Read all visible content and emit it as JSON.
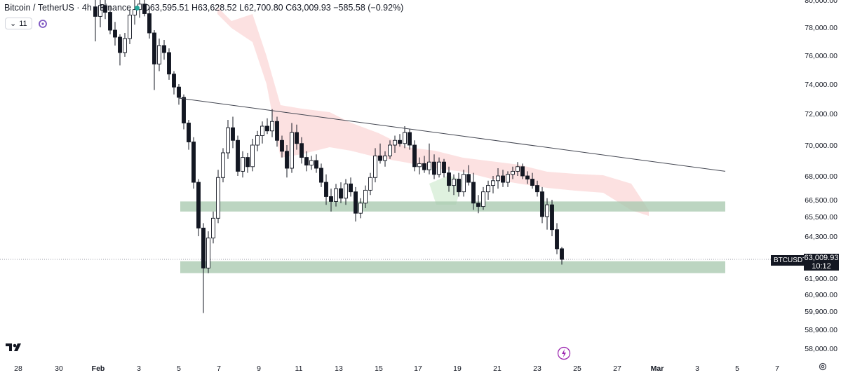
{
  "header": {
    "symbol_title": "Bitcoin / TetherUS · 4h · Binance",
    "open": "O63,595.51",
    "high": "H63,628.52",
    "low": "L62,700.80",
    "close": "C63,009.93",
    "change": "−585.58 (−0.92%)",
    "indicators_count": "11"
  },
  "price_tag": {
    "symbol": "BTCUSDT",
    "price": "63,009.93",
    "countdown": "10:12"
  },
  "colors": {
    "up": "#131722",
    "down": "#131722",
    "cloud_red": "#fcdcdc",
    "cloud_green": "#d9efd9",
    "zone": "#a5c7ac",
    "trendline": "#434651"
  },
  "chart_data": {
    "type": "candlestick",
    "y_ticks": [
      "80,000.00",
      "78,000.00",
      "76,000.00",
      "74,000.00",
      "72,000.00",
      "70,000.00",
      "68,000.00",
      "66,500.00",
      "65,500.00",
      "64,300.00",
      "63,009.93",
      "61,900.00",
      "60,900.00",
      "59,900.00",
      "58,900.00",
      "58,000.00"
    ],
    "x_ticks": [
      "28",
      "30",
      "Feb",
      "3",
      "5",
      "7",
      "9",
      "11",
      "13",
      "15",
      "17",
      "19",
      "21",
      "23",
      "25",
      "27",
      "Mar",
      "3",
      "5",
      "7"
    ],
    "candles": [
      {
        "t": 0,
        "o": 79500,
        "h": 80400,
        "l": 77000,
        "c": 78800
      },
      {
        "t": 1,
        "o": 78800,
        "h": 80100,
        "l": 78000,
        "c": 79600
      },
      {
        "t": 2,
        "o": 79600,
        "h": 80300,
        "l": 78600,
        "c": 79100
      },
      {
        "t": 3,
        "o": 79100,
        "h": 79600,
        "l": 77500,
        "c": 77800
      },
      {
        "t": 4,
        "o": 77800,
        "h": 78400,
        "l": 76700,
        "c": 77300
      },
      {
        "t": 5,
        "o": 77300,
        "h": 77500,
        "l": 75300,
        "c": 76200
      },
      {
        "t": 6,
        "o": 76200,
        "h": 77600,
        "l": 75900,
        "c": 77200
      },
      {
        "t": 7,
        "o": 77200,
        "h": 79300,
        "l": 76800,
        "c": 78900
      },
      {
        "t": 8,
        "o": 78900,
        "h": 80000,
        "l": 78200,
        "c": 79300
      },
      {
        "t": 9,
        "o": 79300,
        "h": 80100,
        "l": 78700,
        "c": 79700
      },
      {
        "t": 10,
        "o": 79700,
        "h": 80200,
        "l": 78800,
        "c": 79000
      },
      {
        "t": 11,
        "o": 79000,
        "h": 79500,
        "l": 77200,
        "c": 77600
      },
      {
        "t": 12,
        "o": 77600,
        "h": 77800,
        "l": 73600,
        "c": 75400
      },
      {
        "t": 13,
        "o": 75400,
        "h": 77200,
        "l": 74900,
        "c": 76700
      },
      {
        "t": 14,
        "o": 76700,
        "h": 77100,
        "l": 75700,
        "c": 76200
      },
      {
        "t": 15,
        "o": 76200,
        "h": 76500,
        "l": 74300,
        "c": 74700
      },
      {
        "t": 16,
        "o": 74700,
        "h": 74900,
        "l": 73300,
        "c": 73800
      },
      {
        "t": 17,
        "o": 73800,
        "h": 74000,
        "l": 72600,
        "c": 73100
      },
      {
        "t": 18,
        "o": 73100,
        "h": 73300,
        "l": 71000,
        "c": 71400
      },
      {
        "t": 19,
        "o": 71400,
        "h": 71600,
        "l": 69700,
        "c": 70200
      },
      {
        "t": 20,
        "o": 70200,
        "h": 70500,
        "l": 67200,
        "c": 67600
      },
      {
        "t": 21,
        "o": 67600,
        "h": 67800,
        "l": 64300,
        "c": 64800
      },
      {
        "t": 22,
        "o": 64800,
        "h": 65100,
        "l": 59800,
        "c": 62500
      },
      {
        "t": 23,
        "o": 62500,
        "h": 64600,
        "l": 62200,
        "c": 64200
      },
      {
        "t": 24,
        "o": 64200,
        "h": 65800,
        "l": 63900,
        "c": 65400
      },
      {
        "t": 25,
        "o": 65400,
        "h": 68400,
        "l": 65100,
        "c": 67900
      },
      {
        "t": 26,
        "o": 67900,
        "h": 69800,
        "l": 67600,
        "c": 69500
      },
      {
        "t": 27,
        "o": 69500,
        "h": 71600,
        "l": 69100,
        "c": 71100
      },
      {
        "t": 28,
        "o": 71100,
        "h": 71800,
        "l": 69800,
        "c": 70300
      },
      {
        "t": 29,
        "o": 70300,
        "h": 70600,
        "l": 68000,
        "c": 68300
      },
      {
        "t": 30,
        "o": 68300,
        "h": 69600,
        "l": 67900,
        "c": 69200
      },
      {
        "t": 31,
        "o": 69200,
        "h": 69500,
        "l": 68200,
        "c": 68600
      },
      {
        "t": 32,
        "o": 68600,
        "h": 70400,
        "l": 68300,
        "c": 70000
      },
      {
        "t": 33,
        "o": 70000,
        "h": 70900,
        "l": 69600,
        "c": 70600
      },
      {
        "t": 34,
        "o": 70600,
        "h": 71500,
        "l": 70100,
        "c": 71200
      },
      {
        "t": 35,
        "o": 71200,
        "h": 71700,
        "l": 70700,
        "c": 70900
      },
      {
        "t": 36,
        "o": 70900,
        "h": 72300,
        "l": 70500,
        "c": 71500
      },
      {
        "t": 37,
        "o": 71500,
        "h": 71800,
        "l": 69900,
        "c": 70300
      },
      {
        "t": 38,
        "o": 70300,
        "h": 70600,
        "l": 69200,
        "c": 69600
      },
      {
        "t": 39,
        "o": 69600,
        "h": 70000,
        "l": 67900,
        "c": 68500
      },
      {
        "t": 40,
        "o": 68500,
        "h": 71400,
        "l": 68200,
        "c": 70800
      },
      {
        "t": 41,
        "o": 70800,
        "h": 71300,
        "l": 69700,
        "c": 70100
      },
      {
        "t": 42,
        "o": 70100,
        "h": 70500,
        "l": 68800,
        "c": 69200
      },
      {
        "t": 43,
        "o": 69200,
        "h": 69600,
        "l": 68300,
        "c": 68700
      },
      {
        "t": 44,
        "o": 68700,
        "h": 69300,
        "l": 68400,
        "c": 69000
      },
      {
        "t": 45,
        "o": 69000,
        "h": 69400,
        "l": 68200,
        "c": 68500
      },
      {
        "t": 46,
        "o": 68500,
        "h": 68800,
        "l": 67300,
        "c": 67600
      },
      {
        "t": 47,
        "o": 67600,
        "h": 68100,
        "l": 66200,
        "c": 66700
      },
      {
        "t": 48,
        "o": 66700,
        "h": 67200,
        "l": 65800,
        "c": 66400
      },
      {
        "t": 49,
        "o": 66400,
        "h": 67500,
        "l": 66100,
        "c": 67200
      },
      {
        "t": 50,
        "o": 67200,
        "h": 67600,
        "l": 66300,
        "c": 66600
      },
      {
        "t": 51,
        "o": 66600,
        "h": 67800,
        "l": 66200,
        "c": 67500
      },
      {
        "t": 52,
        "o": 67500,
        "h": 67900,
        "l": 66700,
        "c": 67000
      },
      {
        "t": 53,
        "o": 67000,
        "h": 67300,
        "l": 65200,
        "c": 65700
      },
      {
        "t": 54,
        "o": 65700,
        "h": 66600,
        "l": 65400,
        "c": 66300
      },
      {
        "t": 55,
        "o": 66300,
        "h": 67400,
        "l": 66000,
        "c": 67100
      },
      {
        "t": 56,
        "o": 67100,
        "h": 68200,
        "l": 66800,
        "c": 67900
      },
      {
        "t": 57,
        "o": 67900,
        "h": 69800,
        "l": 67600,
        "c": 69300
      },
      {
        "t": 58,
        "o": 69300,
        "h": 70100,
        "l": 68800,
        "c": 69000
      },
      {
        "t": 59,
        "o": 69000,
        "h": 69600,
        "l": 68600,
        "c": 69300
      },
      {
        "t": 60,
        "o": 69300,
        "h": 70300,
        "l": 69100,
        "c": 70000
      },
      {
        "t": 61,
        "o": 70000,
        "h": 70600,
        "l": 69500,
        "c": 70300
      },
      {
        "t": 62,
        "o": 70300,
        "h": 70700,
        "l": 69900,
        "c": 70100
      },
      {
        "t": 63,
        "o": 70100,
        "h": 71200,
        "l": 69800,
        "c": 70800
      },
      {
        "t": 64,
        "o": 70800,
        "h": 71000,
        "l": 69700,
        "c": 70000
      },
      {
        "t": 65,
        "o": 70000,
        "h": 70300,
        "l": 68300,
        "c": 68600
      },
      {
        "t": 66,
        "o": 68600,
        "h": 69200,
        "l": 68100,
        "c": 68800
      },
      {
        "t": 67,
        "o": 68800,
        "h": 69300,
        "l": 68200,
        "c": 68400
      },
      {
        "t": 68,
        "o": 68400,
        "h": 70100,
        "l": 68100,
        "c": 68900
      },
      {
        "t": 69,
        "o": 68900,
        "h": 69400,
        "l": 67800,
        "c": 68100
      },
      {
        "t": 70,
        "o": 68100,
        "h": 69200,
        "l": 67900,
        "c": 68900
      },
      {
        "t": 71,
        "o": 68900,
        "h": 69100,
        "l": 67900,
        "c": 68200
      },
      {
        "t": 72,
        "o": 68200,
        "h": 68600,
        "l": 67000,
        "c": 67400
      },
      {
        "t": 73,
        "o": 67400,
        "h": 68100,
        "l": 66800,
        "c": 67800
      },
      {
        "t": 74,
        "o": 67800,
        "h": 68200,
        "l": 66700,
        "c": 67000
      },
      {
        "t": 75,
        "o": 67000,
        "h": 68400,
        "l": 66700,
        "c": 68100
      },
      {
        "t": 76,
        "o": 68100,
        "h": 68700,
        "l": 67400,
        "c": 67600
      },
      {
        "t": 77,
        "o": 67600,
        "h": 68200,
        "l": 65900,
        "c": 66300
      },
      {
        "t": 78,
        "o": 66300,
        "h": 66800,
        "l": 65700,
        "c": 66100
      },
      {
        "t": 79,
        "o": 66100,
        "h": 67300,
        "l": 65900,
        "c": 67000
      },
      {
        "t": 80,
        "o": 67000,
        "h": 67700,
        "l": 66500,
        "c": 67400
      },
      {
        "t": 81,
        "o": 67400,
        "h": 68000,
        "l": 66900,
        "c": 67700
      },
      {
        "t": 82,
        "o": 67700,
        "h": 68500,
        "l": 67200,
        "c": 68000
      },
      {
        "t": 83,
        "o": 68000,
        "h": 68400,
        "l": 67300,
        "c": 67600
      },
      {
        "t": 84,
        "o": 67600,
        "h": 68300,
        "l": 67300,
        "c": 68100
      },
      {
        "t": 85,
        "o": 68100,
        "h": 68600,
        "l": 67800,
        "c": 68300
      },
      {
        "t": 86,
        "o": 68300,
        "h": 68900,
        "l": 68000,
        "c": 68600
      },
      {
        "t": 87,
        "o": 68600,
        "h": 68800,
        "l": 67800,
        "c": 68000
      },
      {
        "t": 88,
        "o": 68000,
        "h": 68300,
        "l": 67500,
        "c": 67800
      },
      {
        "t": 89,
        "o": 67800,
        "h": 68200,
        "l": 67200,
        "c": 67400
      },
      {
        "t": 90,
        "o": 67400,
        "h": 67700,
        "l": 66700,
        "c": 67000
      },
      {
        "t": 91,
        "o": 67000,
        "h": 67300,
        "l": 65100,
        "c": 65500
      },
      {
        "t": 92,
        "o": 65500,
        "h": 66600,
        "l": 64700,
        "c": 66200
      },
      {
        "t": 93,
        "o": 66200,
        "h": 66500,
        "l": 64300,
        "c": 64700
      },
      {
        "t": 94,
        "o": 64700,
        "h": 65100,
        "l": 63300,
        "c": 63600
      },
      {
        "t": 95,
        "o": 63600,
        "h": 63700,
        "l": 62700,
        "c": 63010
      }
    ],
    "trendline": {
      "from": {
        "t": 17,
        "price": 73050
      },
      "to": {
        "t": 130,
        "price": 68300
      }
    },
    "zones": [
      {
        "from_t": 17,
        "to_t": 130,
        "top": 66400,
        "bottom": 65800
      },
      {
        "from_t": 17,
        "to_t": 130,
        "top": 62900,
        "bottom": 62200
      }
    ]
  }
}
